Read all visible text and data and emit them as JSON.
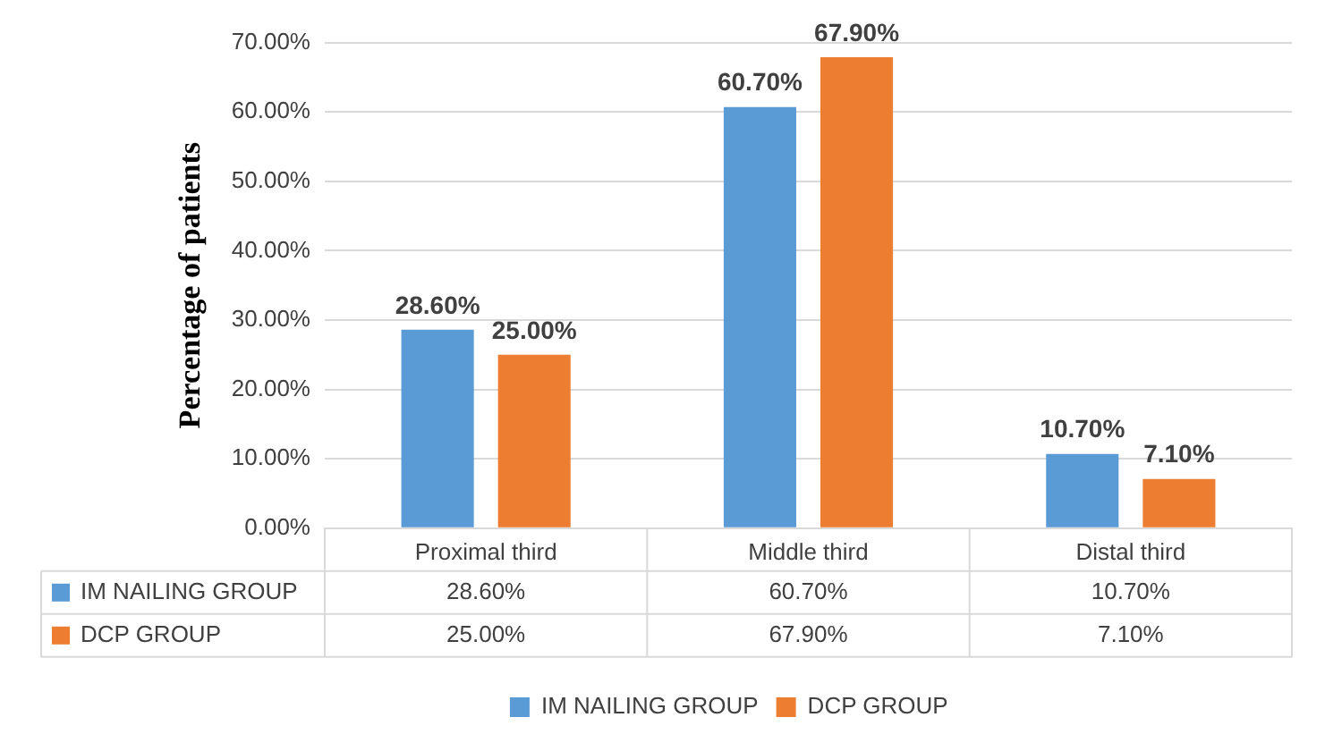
{
  "chart_data": {
    "type": "bar",
    "ylabel": "Percentage of patients",
    "categories": [
      "Proximal third",
      "Middle third",
      "Distal third"
    ],
    "series": [
      {
        "name": "IM NAILING GROUP",
        "color": "#5b9bd5",
        "values": [
          28.6,
          60.7,
          10.7
        ],
        "value_labels": [
          "28.60%",
          "60.70%",
          "10.70%"
        ]
      },
      {
        "name": "DCP GROUP",
        "color": "#ed7d31",
        "values": [
          25.0,
          67.9,
          7.1
        ],
        "value_labels": [
          "25.00%",
          "67.90%",
          "7.10%"
        ]
      }
    ],
    "ylim": [
      0,
      70
    ],
    "yticks": [
      {
        "value": 0,
        "label": "0.00%"
      },
      {
        "value": 10,
        "label": "10.00%"
      },
      {
        "value": 20,
        "label": "20.00%"
      },
      {
        "value": 30,
        "label": "30.00%"
      },
      {
        "value": 40,
        "label": "40.00%"
      },
      {
        "value": 50,
        "label": "50.00%"
      },
      {
        "value": 60,
        "label": "60.00%"
      },
      {
        "value": 70,
        "label": "70.00%"
      }
    ],
    "grid": "y",
    "legend": "bottom"
  }
}
